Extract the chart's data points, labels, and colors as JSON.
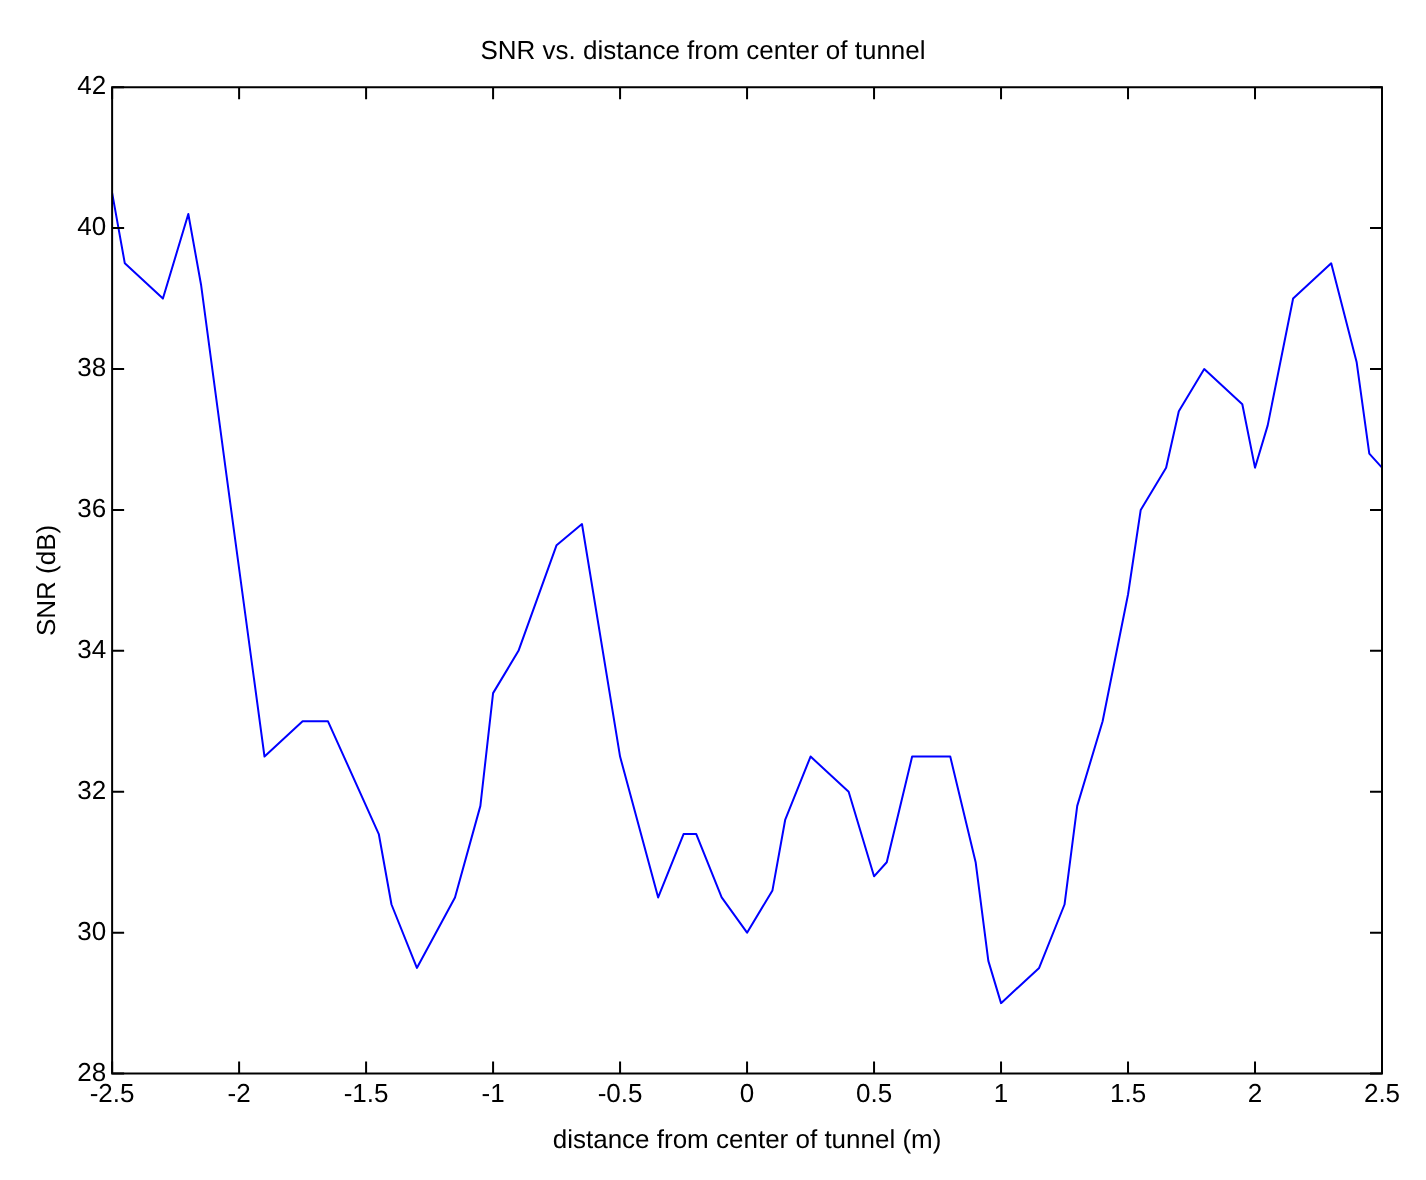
{
  "chart_data": {
    "type": "line",
    "title": "SNR vs. distance from center of tunnel",
    "xlabel": "distance from center of tunnel (m)",
    "ylabel": "SNR (dB)",
    "xlim": [
      -2.5,
      2.5
    ],
    "xticks": [
      -2.5,
      -2,
      -1.5,
      -1,
      -0.5,
      0,
      0.5,
      1,
      1.5,
      2,
      2.5
    ],
    "ylim": [
      28,
      42
    ],
    "yticks": [
      28,
      30,
      32,
      34,
      36,
      38,
      40,
      42
    ],
    "grid": false,
    "legend": false,
    "marker": "none",
    "line_style": "solid",
    "series": [
      {
        "color": "#0000ff",
        "x": [
          -2.5,
          -2.45,
          -2.3,
          -2.2,
          -2.15,
          -2.05,
          -1.9,
          -1.75,
          -1.65,
          -1.45,
          -1.4,
          -1.3,
          -1.15,
          -1.05,
          -1.0,
          -0.9,
          -0.75,
          -0.65,
          -0.5,
          -0.35,
          -0.25,
          -0.2,
          -0.1,
          0.0,
          0.1,
          0.15,
          0.25,
          0.4,
          0.5,
          0.55,
          0.65,
          0.8,
          0.9,
          0.95,
          1.0,
          1.15,
          1.25,
          1.3,
          1.4,
          1.5,
          1.55,
          1.65,
          1.7,
          1.8,
          1.95,
          2.0,
          2.05,
          2.15,
          2.3,
          2.4,
          2.45,
          2.5
        ],
        "values": [
          40.5,
          39.5,
          39.0,
          40.2,
          39.2,
          36.5,
          32.5,
          33.0,
          33.0,
          31.4,
          30.4,
          29.5,
          30.5,
          31.8,
          33.4,
          34.0,
          35.5,
          35.8,
          32.5,
          30.5,
          31.4,
          31.4,
          30.5,
          30.0,
          30.6,
          31.6,
          32.5,
          32.0,
          30.8,
          31.0,
          32.5,
          32.5,
          31.0,
          29.6,
          29.0,
          29.5,
          30.4,
          31.8,
          33.0,
          34.8,
          36.0,
          36.6,
          37.4,
          38.0,
          37.5,
          36.6,
          37.2,
          39.0,
          39.5,
          38.1,
          36.8,
          36.6
        ]
      }
    ]
  }
}
